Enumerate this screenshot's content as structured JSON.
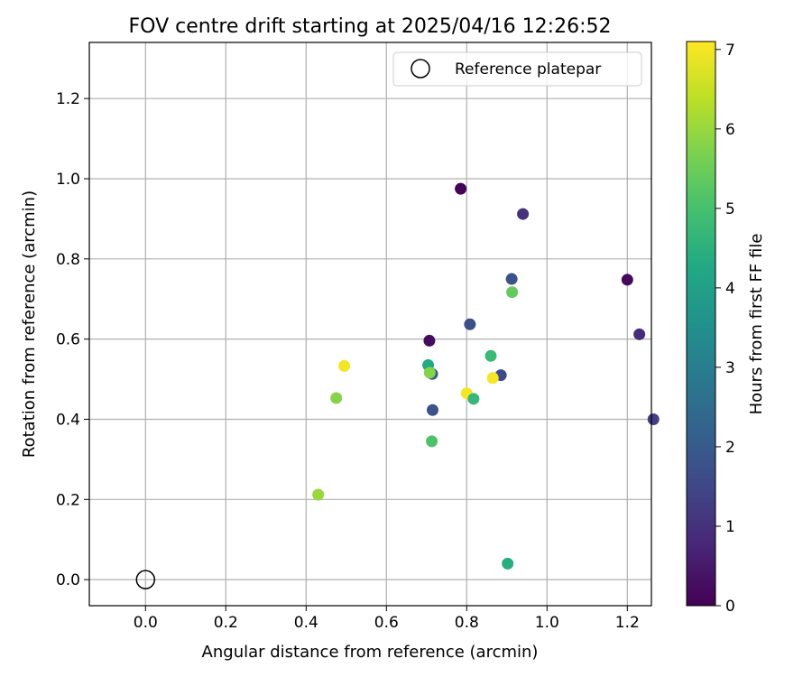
{
  "chart_data": {
    "type": "scatter",
    "title": "FOV centre drift starting at 2025/04/16 12:26:52",
    "xlabel": "Angular distance from reference (arcmin)",
    "ylabel": "Rotation from reference (arcmin)",
    "xlim": [
      -0.14,
      1.26
    ],
    "ylim": [
      -0.065,
      1.34
    ],
    "xticks": [
      "0.0",
      "0.2",
      "0.4",
      "0.6",
      "0.8",
      "1.0",
      "1.2"
    ],
    "xtick_values": [
      0.0,
      0.2,
      0.4,
      0.6,
      0.8,
      1.0,
      1.2
    ],
    "yticks": [
      "0.0",
      "0.2",
      "0.4",
      "0.6",
      "0.8",
      "1.0",
      "1.2"
    ],
    "ytick_values": [
      0.0,
      0.2,
      0.4,
      0.6,
      0.8,
      1.0,
      1.2
    ],
    "grid": true,
    "legend_position": "top-right",
    "reference": {
      "label": "Reference platepar",
      "x": 0.0,
      "y": 0.0
    },
    "colorbar": {
      "label": "Hours from first FF file",
      "range": [
        0,
        7.1
      ],
      "ticks": [
        "0",
        "1",
        "2",
        "3",
        "4",
        "5",
        "6",
        "7"
      ],
      "tick_values": [
        0,
        1,
        2,
        3,
        4,
        5,
        6,
        7
      ],
      "colormap": "viridis"
    },
    "points": [
      {
        "x": 0.785,
        "y": 0.975,
        "hours": 0.05
      },
      {
        "x": 0.94,
        "y": 0.912,
        "hours": 1.0
      },
      {
        "x": 1.2,
        "y": 0.748,
        "hours": 0.15
      },
      {
        "x": 1.23,
        "y": 0.612,
        "hours": 0.9
      },
      {
        "x": 1.265,
        "y": 0.4,
        "hours": 1.3
      },
      {
        "x": 0.912,
        "y": 0.75,
        "hours": 1.8
      },
      {
        "x": 0.913,
        "y": 0.717,
        "hours": 5.4
      },
      {
        "x": 0.808,
        "y": 0.637,
        "hours": 1.7
      },
      {
        "x": 0.707,
        "y": 0.596,
        "hours": 0.2
      },
      {
        "x": 0.86,
        "y": 0.558,
        "hours": 4.8
      },
      {
        "x": 0.714,
        "y": 0.513,
        "hours": 2.0
      },
      {
        "x": 0.704,
        "y": 0.535,
        "hours": 4.3
      },
      {
        "x": 0.708,
        "y": 0.516,
        "hours": 5.8
      },
      {
        "x": 0.885,
        "y": 0.51,
        "hours": 1.6
      },
      {
        "x": 0.865,
        "y": 0.503,
        "hours": 7.0
      },
      {
        "x": 0.8,
        "y": 0.465,
        "hours": 7.0
      },
      {
        "x": 0.817,
        "y": 0.451,
        "hours": 4.7
      },
      {
        "x": 0.495,
        "y": 0.533,
        "hours": 7.0
      },
      {
        "x": 0.475,
        "y": 0.453,
        "hours": 5.8
      },
      {
        "x": 0.715,
        "y": 0.423,
        "hours": 1.8
      },
      {
        "x": 0.713,
        "y": 0.345,
        "hours": 5.1
      },
      {
        "x": 0.43,
        "y": 0.212,
        "hours": 6.0
      },
      {
        "x": 0.902,
        "y": 0.04,
        "hours": 4.4
      }
    ]
  }
}
